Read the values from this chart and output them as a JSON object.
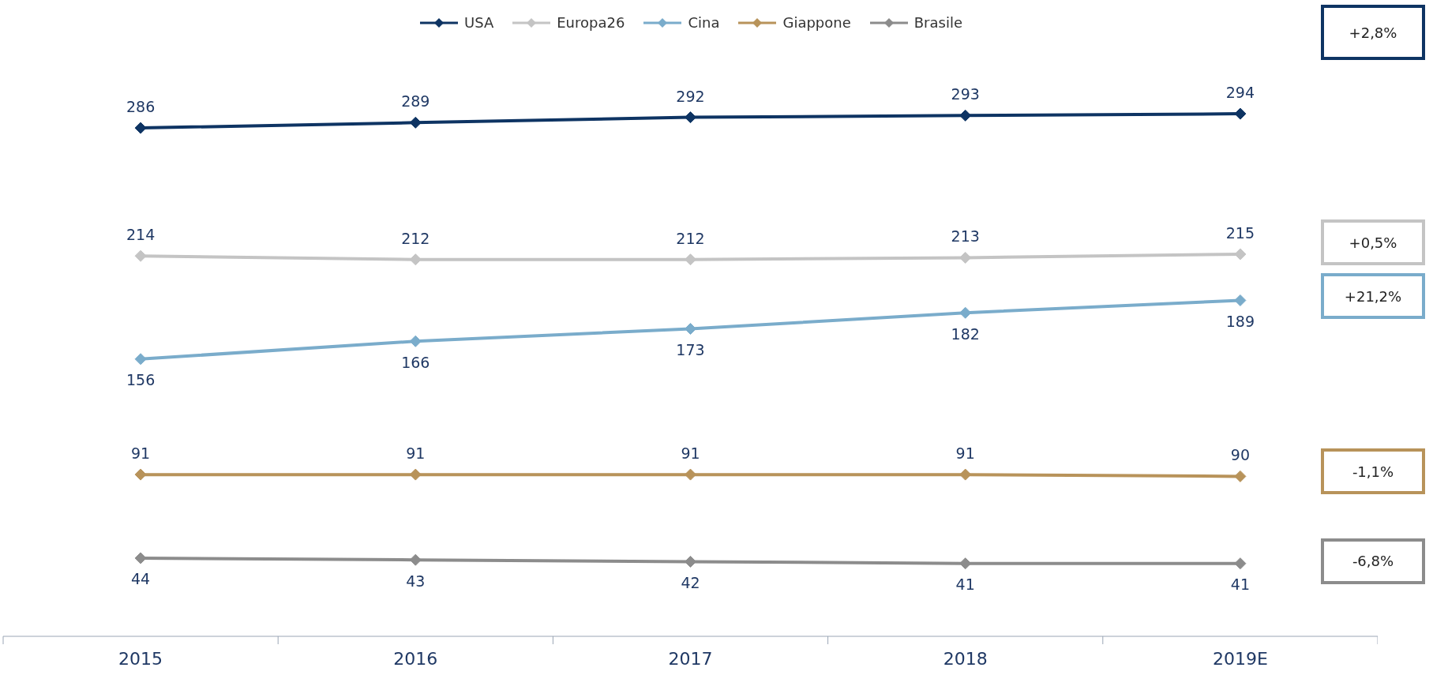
{
  "chart_data": {
    "type": "line",
    "categories": [
      "2015",
      "2016",
      "2017",
      "2018",
      "2019E"
    ],
    "series": [
      {
        "name": "USA",
        "color": "#0e3463",
        "values": [
          286,
          289,
          292,
          293,
          294
        ]
      },
      {
        "name": "Europa26",
        "color": "#c4c4c4",
        "values": [
          214,
          212,
          212,
          213,
          215
        ]
      },
      {
        "name": "Cina",
        "color": "#7aaccb",
        "values": [
          156,
          166,
          173,
          182,
          189
        ]
      },
      {
        "name": "Giappone",
        "color": "#b8935a",
        "values": [
          91,
          91,
          91,
          91,
          90
        ]
      },
      {
        "name": "Brasile",
        "color": "#8c8c8c",
        "values": [
          44,
          43,
          42,
          41,
          41
        ]
      }
    ],
    "data_labels": true,
    "marker": "diamond",
    "legend": "top",
    "grid": false,
    "annotations": [
      "+2,8%",
      "+0,5%",
      "+21,2%",
      "-1,1%",
      "-6,8%"
    ]
  }
}
